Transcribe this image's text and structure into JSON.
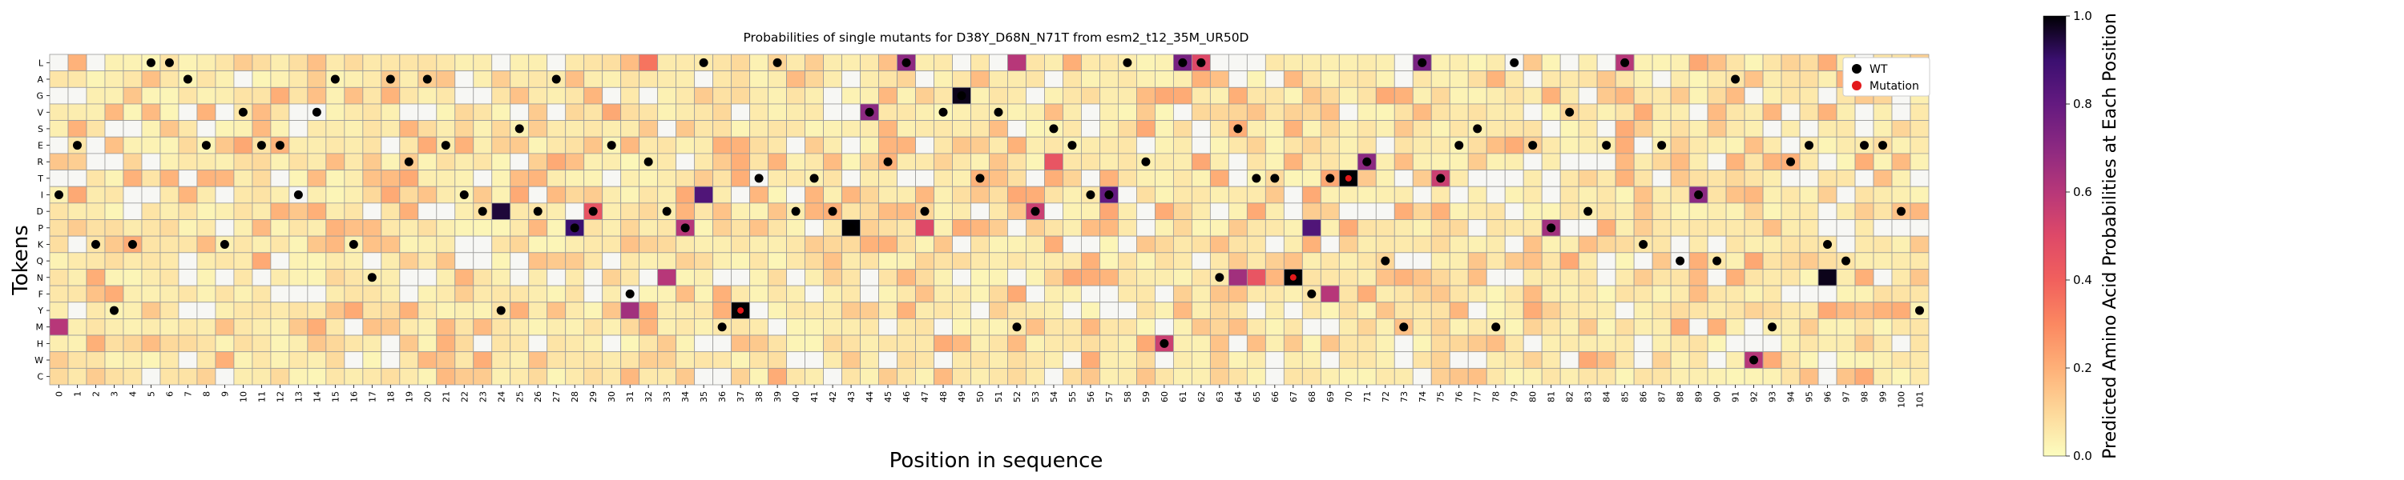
{
  "chart_data": {
    "type": "heatmap",
    "title": "Probabilities of single mutants for D38Y_D68N_N71T from esm2_t12_35M_UR50D",
    "xlabel": "Position in sequence",
    "ylabel": "Tokens",
    "colorbar_label": "Predicted Amino Acid Probabilities at Each Position",
    "colorbar_ticks": [
      "0.0",
      "0.2",
      "0.4",
      "0.6",
      "0.8",
      "1.0"
    ],
    "colormap": "magma_r",
    "value_range": [
      0,
      1
    ],
    "tokens": [
      "L",
      "A",
      "G",
      "V",
      "S",
      "E",
      "R",
      "T",
      "I",
      "D",
      "P",
      "K",
      "Q",
      "N",
      "F",
      "Y",
      "M",
      "H",
      "W",
      "C"
    ],
    "positions": [
      "0",
      "1",
      "2",
      "3",
      "4",
      "5",
      "6",
      "7",
      "8",
      "9",
      "10",
      "11",
      "12",
      "13",
      "14",
      "15",
      "16",
      "17",
      "18",
      "19",
      "20",
      "21",
      "22",
      "23",
      "24",
      "25",
      "26",
      "27",
      "28",
      "29",
      "30",
      "31",
      "32",
      "33",
      "34",
      "35",
      "36",
      "37",
      "38",
      "39",
      "40",
      "41",
      "42",
      "43",
      "44",
      "45",
      "46",
      "47",
      "48",
      "49",
      "50",
      "51",
      "52",
      "53",
      "54",
      "55",
      "56",
      "57",
      "58",
      "59",
      "60",
      "61",
      "62",
      "63",
      "64",
      "65",
      "66",
      "67",
      "68",
      "69",
      "70",
      "71",
      "72",
      "73",
      "74",
      "75",
      "76",
      "77",
      "78",
      "79",
      "80",
      "81",
      "82",
      "83",
      "84",
      "85",
      "86",
      "87",
      "88",
      "89",
      "90",
      "91",
      "92",
      "93",
      "94",
      "95",
      "96",
      "97",
      "98",
      "99",
      "100",
      "101"
    ],
    "wt_token_per_position": [
      "I",
      "E",
      "K",
      "Y",
      "K",
      "L",
      "L",
      "A",
      "E",
      "K",
      "V",
      "E",
      "E",
      "I",
      "V",
      "A",
      "K",
      "N",
      "A",
      "R",
      "A",
      "E",
      "I",
      "D",
      "Y",
      "S",
      "D",
      "A",
      "P",
      "D",
      "E",
      "F",
      "R",
      "D",
      "P",
      "L",
      "M",
      "Y",
      "T",
      "L",
      "D",
      "T",
      "D",
      "P",
      "V",
      "R",
      "L",
      "D",
      "V",
      "G",
      "T",
      "V",
      "M",
      "D",
      "S",
      "E",
      "I",
      "I",
      "L",
      "R",
      "H",
      "L",
      "L",
      "N",
      "S",
      "T",
      "T",
      "N",
      "F",
      "T",
      "T",
      "R",
      "Q",
      "M",
      "L",
      "T",
      "E",
      "S",
      "M",
      "L",
      "E",
      "P",
      "V",
      "D",
      "E",
      "L",
      "K",
      "E",
      "Q",
      "I",
      "Q",
      "A",
      "W",
      "M",
      "R",
      "E",
      "K",
      "Q",
      "E",
      "E",
      "D",
      "Y"
    ],
    "mutations": [
      {
        "position": "37",
        "token": "Y"
      },
      {
        "position": "67",
        "token": "N"
      },
      {
        "position": "70",
        "token": "T"
      }
    ],
    "strong_cells": [
      {
        "position": "0",
        "token": "M",
        "value": 0.6
      },
      {
        "position": "24",
        "token": "D",
        "value": 0.95
      },
      {
        "position": "28",
        "token": "P",
        "value": 0.9
      },
      {
        "position": "29",
        "token": "D",
        "value": 0.45
      },
      {
        "position": "31",
        "token": "Y",
        "value": 0.65
      },
      {
        "position": "32",
        "token": "L",
        "value": 0.35
      },
      {
        "position": "33",
        "token": "N",
        "value": 0.6
      },
      {
        "position": "34",
        "token": "P",
        "value": 0.6
      },
      {
        "position": "35",
        "token": "I",
        "value": 0.85
      },
      {
        "position": "37",
        "token": "Y",
        "value": 1.0
      },
      {
        "position": "43",
        "token": "P",
        "value": 1.0
      },
      {
        "position": "44",
        "token": "V",
        "value": 0.7
      },
      {
        "position": "46",
        "token": "L",
        "value": 0.7
      },
      {
        "position": "47",
        "token": "P",
        "value": 0.5
      },
      {
        "position": "49",
        "token": "G",
        "value": 0.98
      },
      {
        "position": "52",
        "token": "L",
        "value": 0.6
      },
      {
        "position": "53",
        "token": "D",
        "value": 0.55
      },
      {
        "position": "54",
        "token": "R",
        "value": 0.45
      },
      {
        "position": "57",
        "token": "I",
        "value": 0.8
      },
      {
        "position": "60",
        "token": "H",
        "value": 0.55
      },
      {
        "position": "61",
        "token": "L",
        "value": 0.75
      },
      {
        "position": "62",
        "token": "L",
        "value": 0.5
      },
      {
        "position": "64",
        "token": "N",
        "value": 0.65
      },
      {
        "position": "65",
        "token": "N",
        "value": 0.45
      },
      {
        "position": "67",
        "token": "N",
        "value": 1.0
      },
      {
        "position": "68",
        "token": "P",
        "value": 0.85
      },
      {
        "position": "69",
        "token": "F",
        "value": 0.6
      },
      {
        "position": "70",
        "token": "T",
        "value": 1.0
      },
      {
        "position": "71",
        "token": "R",
        "value": 0.7
      },
      {
        "position": "74",
        "token": "L",
        "value": 0.75
      },
      {
        "position": "75",
        "token": "T",
        "value": 0.55
      },
      {
        "position": "81",
        "token": "P",
        "value": 0.65
      },
      {
        "position": "85",
        "token": "L",
        "value": 0.6
      },
      {
        "position": "89",
        "token": "I",
        "value": 0.7
      },
      {
        "position": "92",
        "token": "W",
        "value": 0.6
      },
      {
        "position": "96",
        "token": "N",
        "value": 0.98
      }
    ],
    "legend": {
      "placement": "top-right",
      "entries": [
        {
          "label": "WT",
          "color": "#000000"
        },
        {
          "label": "Mutation",
          "color": "#e31a1c"
        }
      ]
    },
    "grid": true
  }
}
